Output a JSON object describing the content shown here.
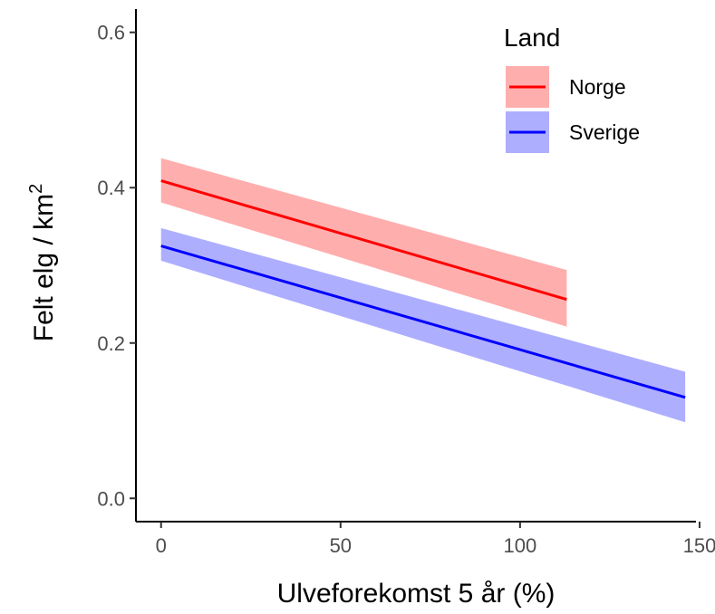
{
  "chart_data": {
    "type": "line",
    "xlabel": "Ulveforekomst 5 år (%)",
    "ylabel": "Felt elg / km",
    "ylabel_superscript": "2",
    "xlim": [
      -7,
      149
    ],
    "ylim": [
      -0.03,
      0.63
    ],
    "x_ticks": [
      0,
      50,
      100,
      150
    ],
    "x_tick_labels": [
      "0",
      "50",
      "100",
      "150"
    ],
    "y_ticks": [
      0.0,
      0.2,
      0.4,
      0.6
    ],
    "y_tick_labels": [
      "0.0",
      "0.2",
      "0.4",
      "0.6"
    ],
    "grid": false,
    "legend": {
      "title": "Land",
      "position": "top-right"
    },
    "series": [
      {
        "name": "Norge",
        "color": "#ff0000",
        "band_color": "#ff6b6b",
        "x": [
          0,
          113
        ],
        "y": [
          0.409,
          0.256
        ],
        "lower": [
          0.381,
          0.221
        ],
        "upper": [
          0.438,
          0.294
        ]
      },
      {
        "name": "Sverige",
        "color": "#0000ff",
        "band_color": "#6b6bff",
        "x": [
          0,
          146
        ],
        "y": [
          0.325,
          0.13
        ],
        "lower": [
          0.306,
          0.098
        ],
        "upper": [
          0.348,
          0.163
        ]
      }
    ]
  }
}
